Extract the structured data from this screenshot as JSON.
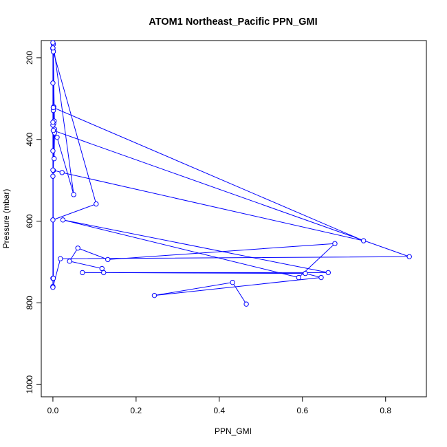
{
  "chart_data": {
    "type": "line",
    "title": "ATOM1 Northeast_Pacific PPN_GMI",
    "xlabel": "PPN_GMI",
    "ylabel": "Pressure (mbar)",
    "xlim": [
      -0.028,
      0.898
    ],
    "ylim": [
      1030,
      158
    ],
    "y_inverted": true,
    "x_ticks": [
      0.0,
      0.2,
      0.4,
      0.6,
      0.8
    ],
    "x_tick_labels": [
      "0.0",
      "0.2",
      "0.4",
      "0.6",
      "0.8"
    ],
    "y_ticks": [
      200,
      400,
      600,
      800,
      1000
    ],
    "y_tick_labels": [
      "200",
      "400",
      "600",
      "800",
      "1000"
    ],
    "grid": false,
    "legend": "none",
    "series_color": "#0000ff",
    "marker": "open-circle",
    "series": [
      {
        "x": [
          0.0,
          0.002,
          0.004,
          0.0,
          0.0,
          0.001,
          0.01,
          0.05,
          0.001,
          0.0,
          0.003,
          0.004,
          0.001,
          0.104,
          0.0,
          0.0,
          0.001,
          0.003,
          0.001,
          0.747,
          0.022,
          0.0,
          0.0,
          0.001,
          0.0,
          0.0,
          0.0,
          0.018,
          0.857,
          0.001,
          0.0,
          0.002,
          0.001,
          0.0,
          0.001,
          0.0,
          0.0
        ],
        "y": [
          178,
          361,
          384,
          176,
          365,
          378,
          395,
          535,
          167,
          428,
          447,
          375,
          185,
          558,
          597,
          490,
          476,
          355,
          322,
          648,
          481,
          475,
          163,
          329,
          262,
          740,
          762,
          692,
          687,
          378,
          358,
          320,
          322,
          760,
          740,
          176,
          762
        ]
      },
      {
        "x": [
          0.118,
          0.04,
          0.06,
          0.132,
          0.678,
          0.591,
          0.024,
          0.662,
          0.071,
          0.122,
          0.607,
          0.645,
          0.244,
          0.432,
          0.465
        ],
        "y": [
          716,
          698,
          666,
          694,
          655,
          738,
          597,
          726,
          726,
          726,
          728,
          738,
          782,
          750,
          803
        ]
      }
    ]
  }
}
